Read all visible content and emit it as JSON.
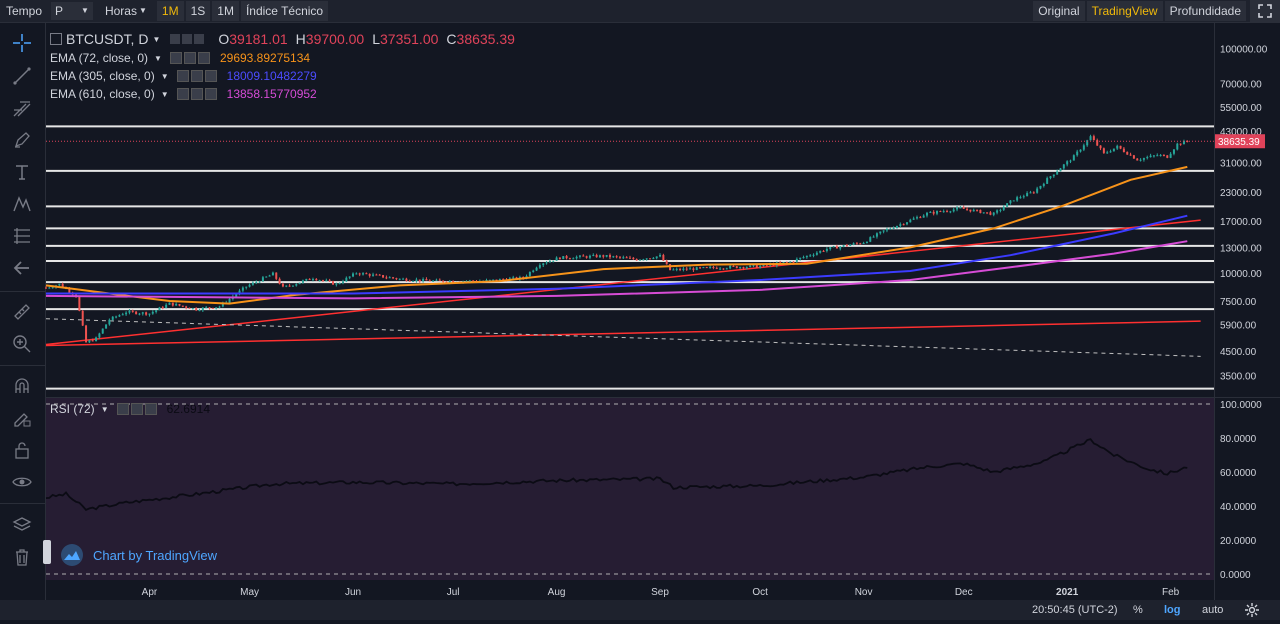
{
  "topbar": {
    "time_label": "Tempo",
    "interval_select": "P",
    "hours_label": "Horas",
    "interval_buttons": [
      "1M",
      "1S",
      "1M"
    ],
    "indicator_label": "Índice Técnico",
    "views": [
      "Original",
      "TradingView",
      "Profundidade"
    ],
    "active_view": "TradingView"
  },
  "legend": {
    "symbol": "BTCUSDT, D",
    "ohlc": [
      {
        "label": "O",
        "value": "39181.01"
      },
      {
        "label": "H",
        "value": "39700.00"
      },
      {
        "label": "L",
        "value": "37351.00"
      },
      {
        "label": "C",
        "value": "38635.39"
      }
    ],
    "indicators": [
      {
        "name": "EMA (72, close, 0)",
        "value": "29693.89275134",
        "color": "#f7931a"
      },
      {
        "name": "EMA (305, close, 0)",
        "value": "18009.10482279",
        "color": "#3b3bff"
      },
      {
        "name": "EMA (610, close, 0)",
        "value": "13858.15770952",
        "color": "#d64cd6"
      }
    ],
    "rsi": {
      "name": "RSI (72)",
      "value": "62.6914"
    }
  },
  "watermark": "Chart by TradingView",
  "status": {
    "time": "20:50:45 (UTC-2)",
    "percent": "%",
    "log": "log",
    "auto": "auto"
  },
  "colors": {
    "background": "#131722",
    "up": "#26a69a",
    "down": "#ef5350",
    "price_line": "#e0435a",
    "trendline": "#ff3030",
    "rsi_bg": "#261d33",
    "rsi_line": "#0b0b14"
  },
  "chart_data": [
    {
      "type": "candlestick",
      "title": "BTCUSDT, D",
      "scale": "log",
      "price_ylim": [
        2800,
        130000
      ],
      "y_ticks": [
        "100000.00",
        "70000.00",
        "55000.00",
        "43000.00",
        "31000.00",
        "23000.00",
        "17000.00",
        "13000.00",
        "10000.00",
        "7500.00",
        "5900.00",
        "4500.00",
        "3500.00"
      ],
      "x_ticks": [
        "Apr",
        "May",
        "Jun",
        "Jul",
        "Aug",
        "Sep",
        "Oct",
        "Nov",
        "Dec",
        "2021",
        "Feb"
      ],
      "last_price": "38635.39",
      "price_path": [
        [
          "2020-03-01",
          8600
        ],
        [
          "2020-03-05",
          8900
        ],
        [
          "2020-03-10",
          7900
        ],
        [
          "2020-03-13",
          4900
        ],
        [
          "2020-03-16",
          5100
        ],
        [
          "2020-03-20",
          6200
        ],
        [
          "2020-03-25",
          6700
        ],
        [
          "2020-04-01",
          6600
        ],
        [
          "2020-04-07",
          7300
        ],
        [
          "2020-04-15",
          6900
        ],
        [
          "2020-04-22",
          7100
        ],
        [
          "2020-04-30",
          8700
        ],
        [
          "2020-05-08",
          9900
        ],
        [
          "2020-05-11",
          8600
        ],
        [
          "2020-05-20",
          9500
        ],
        [
          "2020-05-27",
          8900
        ],
        [
          "2020-06-02",
          10000
        ],
        [
          "2020-06-15",
          9400
        ],
        [
          "2020-06-25",
          9200
        ],
        [
          "2020-07-10",
          9200
        ],
        [
          "2020-07-22",
          9500
        ],
        [
          "2020-07-27",
          11000
        ],
        [
          "2020-08-02",
          11700
        ],
        [
          "2020-08-15",
          11900
        ],
        [
          "2020-08-25",
          11500
        ],
        [
          "2020-09-01",
          11900
        ],
        [
          "2020-09-04",
          10300
        ],
        [
          "2020-09-20",
          10600
        ],
        [
          "2020-10-01",
          10700
        ],
        [
          "2020-10-10",
          11200
        ],
        [
          "2020-10-21",
          12800
        ],
        [
          "2020-11-01",
          13700
        ],
        [
          "2020-11-07",
          15400
        ],
        [
          "2020-11-20",
          18400
        ],
        [
          "2020-11-30",
          19400
        ],
        [
          "2020-12-10",
          18300
        ],
        [
          "2020-12-16",
          21300
        ],
        [
          "2020-12-22",
          23000
        ],
        [
          "2020-12-27",
          27000
        ],
        [
          "2021-01-03",
          33000
        ],
        [
          "2021-01-08",
          40500
        ],
        [
          "2021-01-12",
          34000
        ],
        [
          "2021-01-16",
          36500
        ],
        [
          "2021-01-22",
          32000
        ],
        [
          "2021-01-28",
          33500
        ],
        [
          "2021-01-31",
          33000
        ],
        [
          "2021-02-03",
          37500
        ],
        [
          "2021-02-06",
          38635
        ]
      ],
      "horizontal_levels": [
        45000,
        28500,
        19800,
        15800,
        13200,
        11300,
        9100,
        6900,
        3050
      ],
      "ema_72": [
        [
          "2020-03-01",
          8800
        ],
        [
          "2020-03-20",
          8100
        ],
        [
          "2020-04-07",
          7500
        ],
        [
          "2020-04-25",
          7300
        ],
        [
          "2020-05-15",
          8000
        ],
        [
          "2020-06-15",
          8800
        ],
        [
          "2020-07-15",
          9200
        ],
        [
          "2020-08-15",
          10400
        ],
        [
          "2020-09-15",
          10900
        ],
        [
          "2020-10-15",
          11000
        ],
        [
          "2020-11-15",
          13000
        ],
        [
          "2020-12-10",
          15800
        ],
        [
          "2020-12-31",
          20000
        ],
        [
          "2021-01-20",
          26000
        ],
        [
          "2021-02-06",
          29700
        ]
      ],
      "ema_305": [
        [
          "2020-03-01",
          8100
        ],
        [
          "2020-06-01",
          8100
        ],
        [
          "2020-08-01",
          8500
        ],
        [
          "2020-10-01",
          9300
        ],
        [
          "2020-11-15",
          10200
        ],
        [
          "2020-12-15",
          12000
        ],
        [
          "2021-01-15",
          15000
        ],
        [
          "2021-02-06",
          18000
        ]
      ],
      "ema_610": [
        [
          "2020-03-01",
          7900
        ],
        [
          "2020-06-01",
          7700
        ],
        [
          "2020-08-01",
          7900
        ],
        [
          "2020-10-01",
          8400
        ],
        [
          "2020-11-15",
          9300
        ],
        [
          "2020-12-15",
          10600
        ],
        [
          "2021-01-15",
          12200
        ],
        [
          "2021-02-06",
          13850
        ]
      ],
      "trendlines": [
        {
          "from": [
            "2020-03-01",
            4800
          ],
          "to": [
            "2021-02-10",
            17200
          ],
          "color": "#ff3030"
        },
        {
          "from": [
            "2020-03-01",
            4750
          ],
          "to": [
            "2021-02-10",
            6100
          ],
          "color": "#ff3030"
        },
        {
          "from": [
            "2020-03-01",
            6250
          ],
          "to": [
            "2021-02-10",
            4250
          ],
          "color": "#c0c0c0",
          "dashed": true
        }
      ]
    },
    {
      "type": "line",
      "title": "RSI (72)",
      "ylim": [
        0,
        100
      ],
      "y_ticks": [
        "100.0000",
        "80.0000",
        "60.0000",
        "40.0000",
        "20.0000",
        "0.0000"
      ],
      "rsi_path": [
        [
          "2020-03-01",
          45
        ],
        [
          "2020-03-07",
          47
        ],
        [
          "2020-03-13",
          38
        ],
        [
          "2020-03-25",
          42
        ],
        [
          "2020-04-15",
          47
        ],
        [
          "2020-05-08",
          53
        ],
        [
          "2020-06-01",
          54
        ],
        [
          "2020-07-01",
          53
        ],
        [
          "2020-08-01",
          55
        ],
        [
          "2020-09-01",
          56
        ],
        [
          "2020-09-05",
          51
        ],
        [
          "2020-10-01",
          52
        ],
        [
          "2020-11-01",
          57
        ],
        [
          "2020-11-20",
          63
        ],
        [
          "2020-12-01",
          65
        ],
        [
          "2020-12-10",
          60
        ],
        [
          "2020-12-25",
          66
        ],
        [
          "2021-01-08",
          79
        ],
        [
          "2021-01-15",
          70
        ],
        [
          "2021-01-25",
          62
        ],
        [
          "2021-01-31",
          59
        ],
        [
          "2021-02-06",
          63
        ]
      ]
    }
  ]
}
